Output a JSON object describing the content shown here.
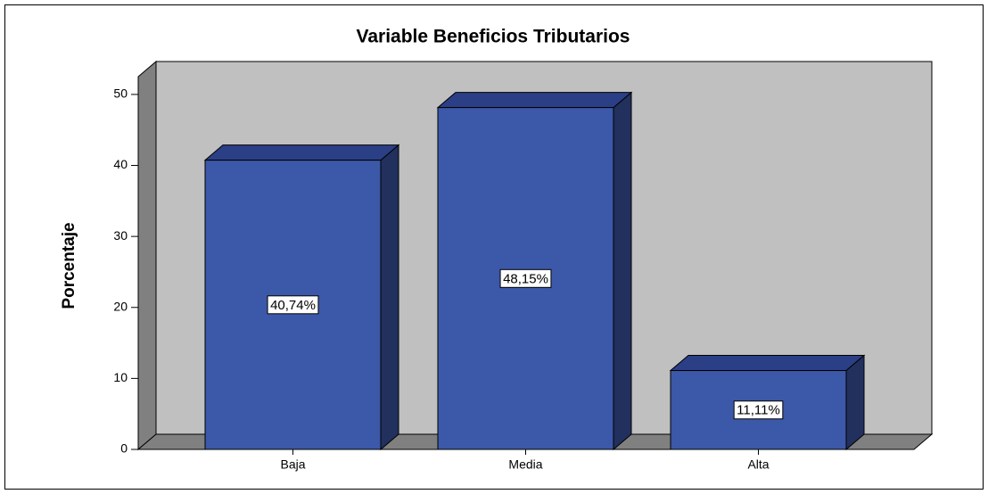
{
  "chart_data": {
    "type": "bar",
    "title": "Variable Beneficios Tributarios",
    "y_label": "Porcentaje",
    "categories": [
      "Baja",
      "Media",
      "Alta"
    ],
    "values": [
      40.74,
      48.15,
      11.11
    ],
    "value_labels": [
      "40,74%",
      "48,15%",
      "11,11%"
    ],
    "color": "#3c58a8",
    "ylim": [
      0,
      52.5
    ],
    "yticks": [
      0,
      10,
      20,
      30,
      40,
      50
    ]
  }
}
